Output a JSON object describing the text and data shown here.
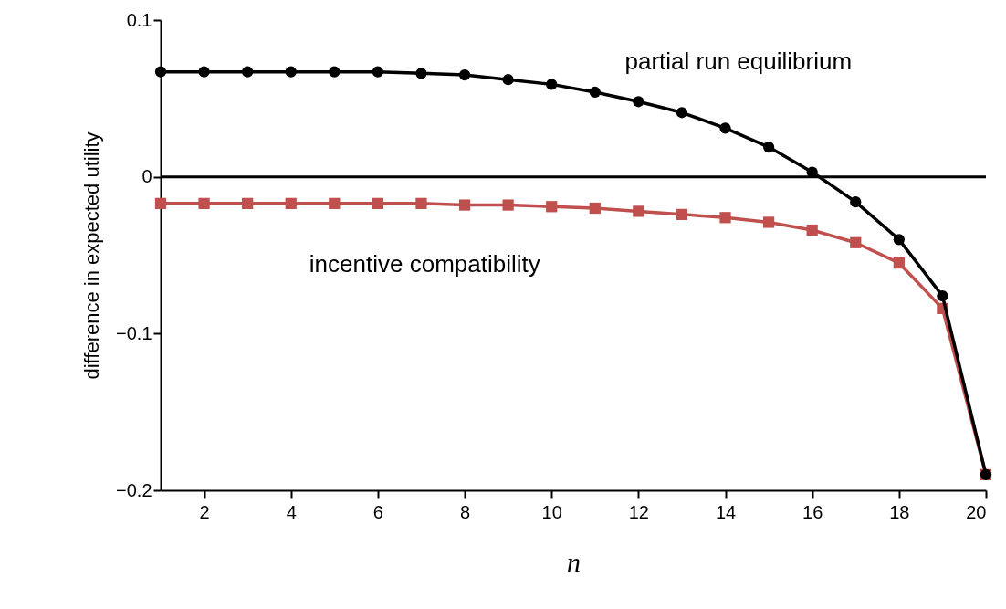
{
  "chart_data": {
    "type": "line",
    "xlabel": "n",
    "ylabel": "difference in expected utility",
    "x": [
      1,
      2,
      3,
      4,
      5,
      6,
      7,
      8,
      9,
      10,
      11,
      12,
      13,
      14,
      15,
      16,
      17,
      18,
      19,
      20
    ],
    "series": [
      {
        "name": "partial run equilibrium",
        "color": "#000000",
        "marker": "circle",
        "values": [
          0.067,
          0.067,
          0.067,
          0.067,
          0.067,
          0.067,
          0.066,
          0.065,
          0.062,
          0.059,
          0.054,
          0.048,
          0.041,
          0.031,
          0.019,
          0.003,
          -0.016,
          -0.04,
          -0.076,
          -0.19
        ]
      },
      {
        "name": "incentive compatibility",
        "color": "#c0504d",
        "marker": "square",
        "values": [
          -0.017,
          -0.017,
          -0.017,
          -0.017,
          -0.017,
          -0.017,
          -0.017,
          -0.018,
          -0.018,
          -0.019,
          -0.02,
          -0.022,
          -0.024,
          -0.026,
          -0.029,
          -0.034,
          -0.042,
          -0.055,
          -0.084,
          -0.19
        ]
      }
    ],
    "xlim": [
      1,
      20
    ],
    "xticks": [
      2,
      4,
      6,
      8,
      10,
      12,
      14,
      16,
      18,
      20
    ],
    "ylim": [
      -0.2,
      0.1
    ],
    "yticks": [
      -0.2,
      -0.1,
      0,
      0.1
    ],
    "ref_lines": [
      {
        "axis": "y",
        "value": 0,
        "color": "#000000"
      }
    ],
    "grid": false
  }
}
